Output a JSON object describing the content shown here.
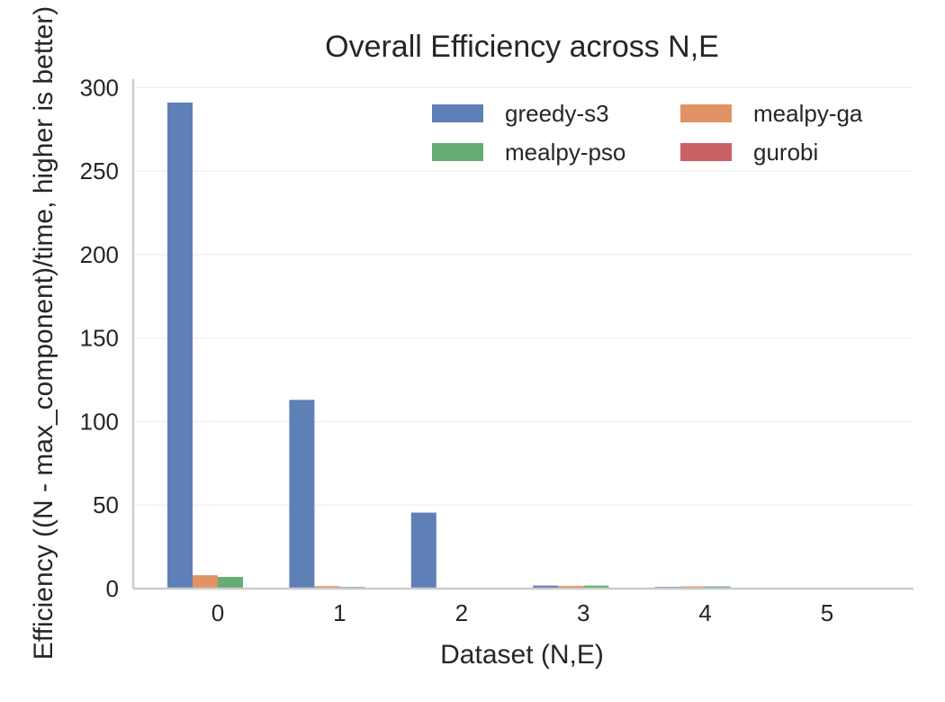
{
  "chart_data": {
    "type": "bar",
    "title": "Overall Efficiency across N,E",
    "xlabel": "Dataset (N,E)",
    "ylabel": "Efficiency ((N - max_component)/time, higher is better)",
    "categories": [
      "0",
      "1",
      "2",
      "3",
      "4",
      "5"
    ],
    "ylim": [
      0,
      305
    ],
    "yticks": [
      0,
      50,
      100,
      150,
      200,
      250,
      300
    ],
    "grid": true,
    "legend_position": "top-right",
    "legend_columns": 2,
    "series": [
      {
        "name": "greedy-s3",
        "color": "#5f7fb7",
        "values": [
          291,
          113,
          45.5,
          1.8,
          1.0,
          0.1
        ]
      },
      {
        "name": "mealpy-ga",
        "color": "#e39265",
        "values": [
          8,
          1.5,
          0.2,
          1.6,
          1.3,
          0.1
        ]
      },
      {
        "name": "mealpy-pso",
        "color": "#65ad74",
        "values": [
          7,
          1.0,
          0.2,
          1.8,
          1.3,
          0.1
        ]
      },
      {
        "name": "gurobi",
        "color": "#c96164",
        "values": [
          0,
          0,
          0,
          0,
          0,
          0
        ]
      }
    ]
  }
}
